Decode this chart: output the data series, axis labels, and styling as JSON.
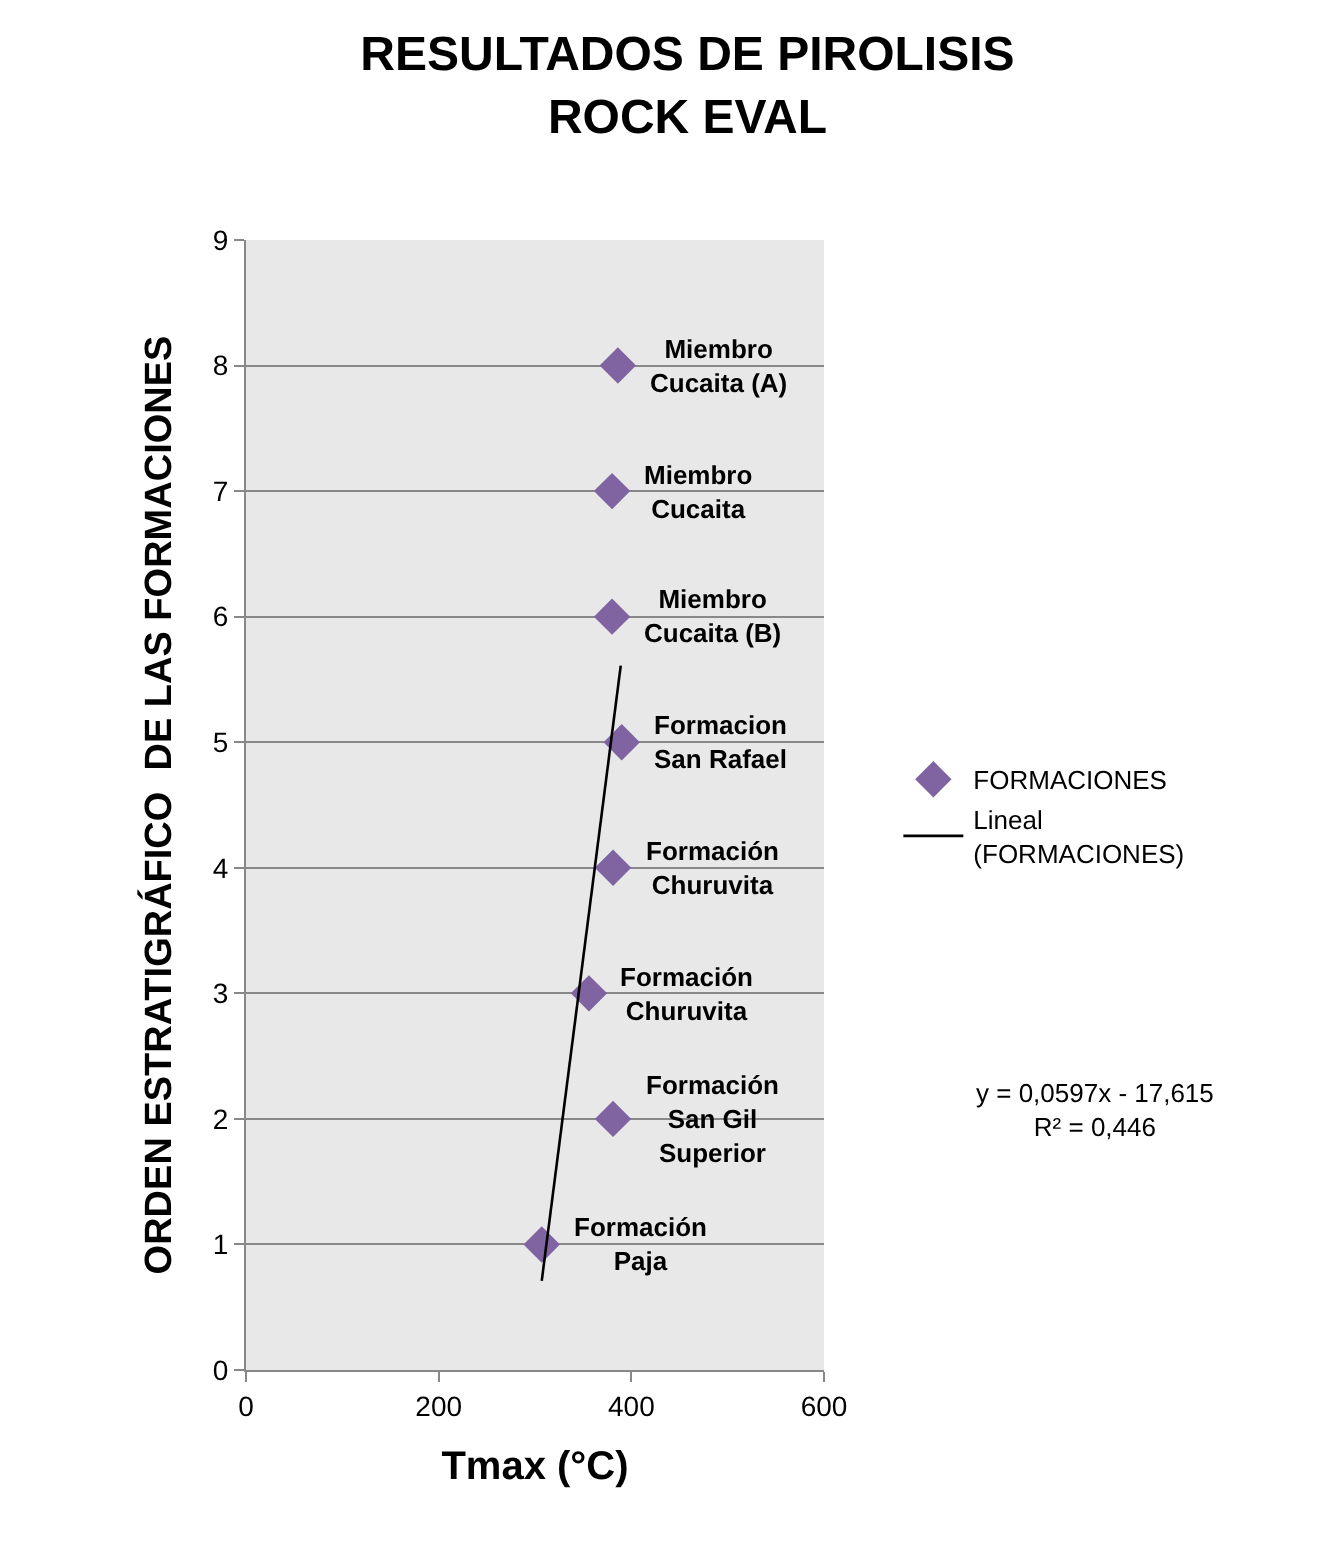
{
  "chart_data": {
    "type": "scatter",
    "title": "RESULTADOS DE PIROLISIS\nROCK EVAL",
    "xlabel": "Tmax (°C)",
    "ylabel": "ORDEN ESTRATIGRÁFICO  DE LAS FORMACIONES",
    "xlim": [
      0,
      600
    ],
    "xticks": [
      0,
      200,
      400,
      600
    ],
    "ylim": [
      0,
      9
    ],
    "yticks": [
      0,
      1,
      2,
      3,
      4,
      5,
      6,
      7,
      8,
      9
    ],
    "grid": "y",
    "legend": "right",
    "series": [
      {
        "name": "FORMACIONES",
        "marker": "diamond",
        "color": "#8064a2",
        "x": [
          386,
          380,
          380,
          390,
          381,
          356,
          381,
          307
        ],
        "values": [
          8,
          7,
          6,
          5,
          4,
          3,
          2,
          1
        ]
      },
      {
        "name": "Lineal\n(FORMACIONES)",
        "type": "line",
        "marker": "none",
        "line_style": "solid",
        "color": "#000000",
        "x": [
          307,
          389
        ],
        "values": [
          0.71,
          5.61
        ]
      }
    ],
    "annotations": [
      {
        "text": "Miembro\nCucaita (A)",
        "x": 386,
        "y": 8
      },
      {
        "text": "Miembro\nCucaita",
        "x": 380,
        "y": 7
      },
      {
        "text": "Miembro\nCucaita (B)",
        "x": 380,
        "y": 6
      },
      {
        "text": "Formacion\nSan Rafael",
        "x": 390,
        "y": 5
      },
      {
        "text": "Formación\nChuruvita",
        "x": 381,
        "y": 4
      },
      {
        "text": "Formación\nChuruvita",
        "x": 356,
        "y": 3
      },
      {
        "text": "Formación\nSan Gil\nSuperior",
        "x": 381,
        "y": 2
      },
      {
        "text": "Formación\nPaja",
        "x": 307,
        "y": 1
      },
      "y = 0,0597x - 17,615\nR² = 0,446"
    ]
  }
}
